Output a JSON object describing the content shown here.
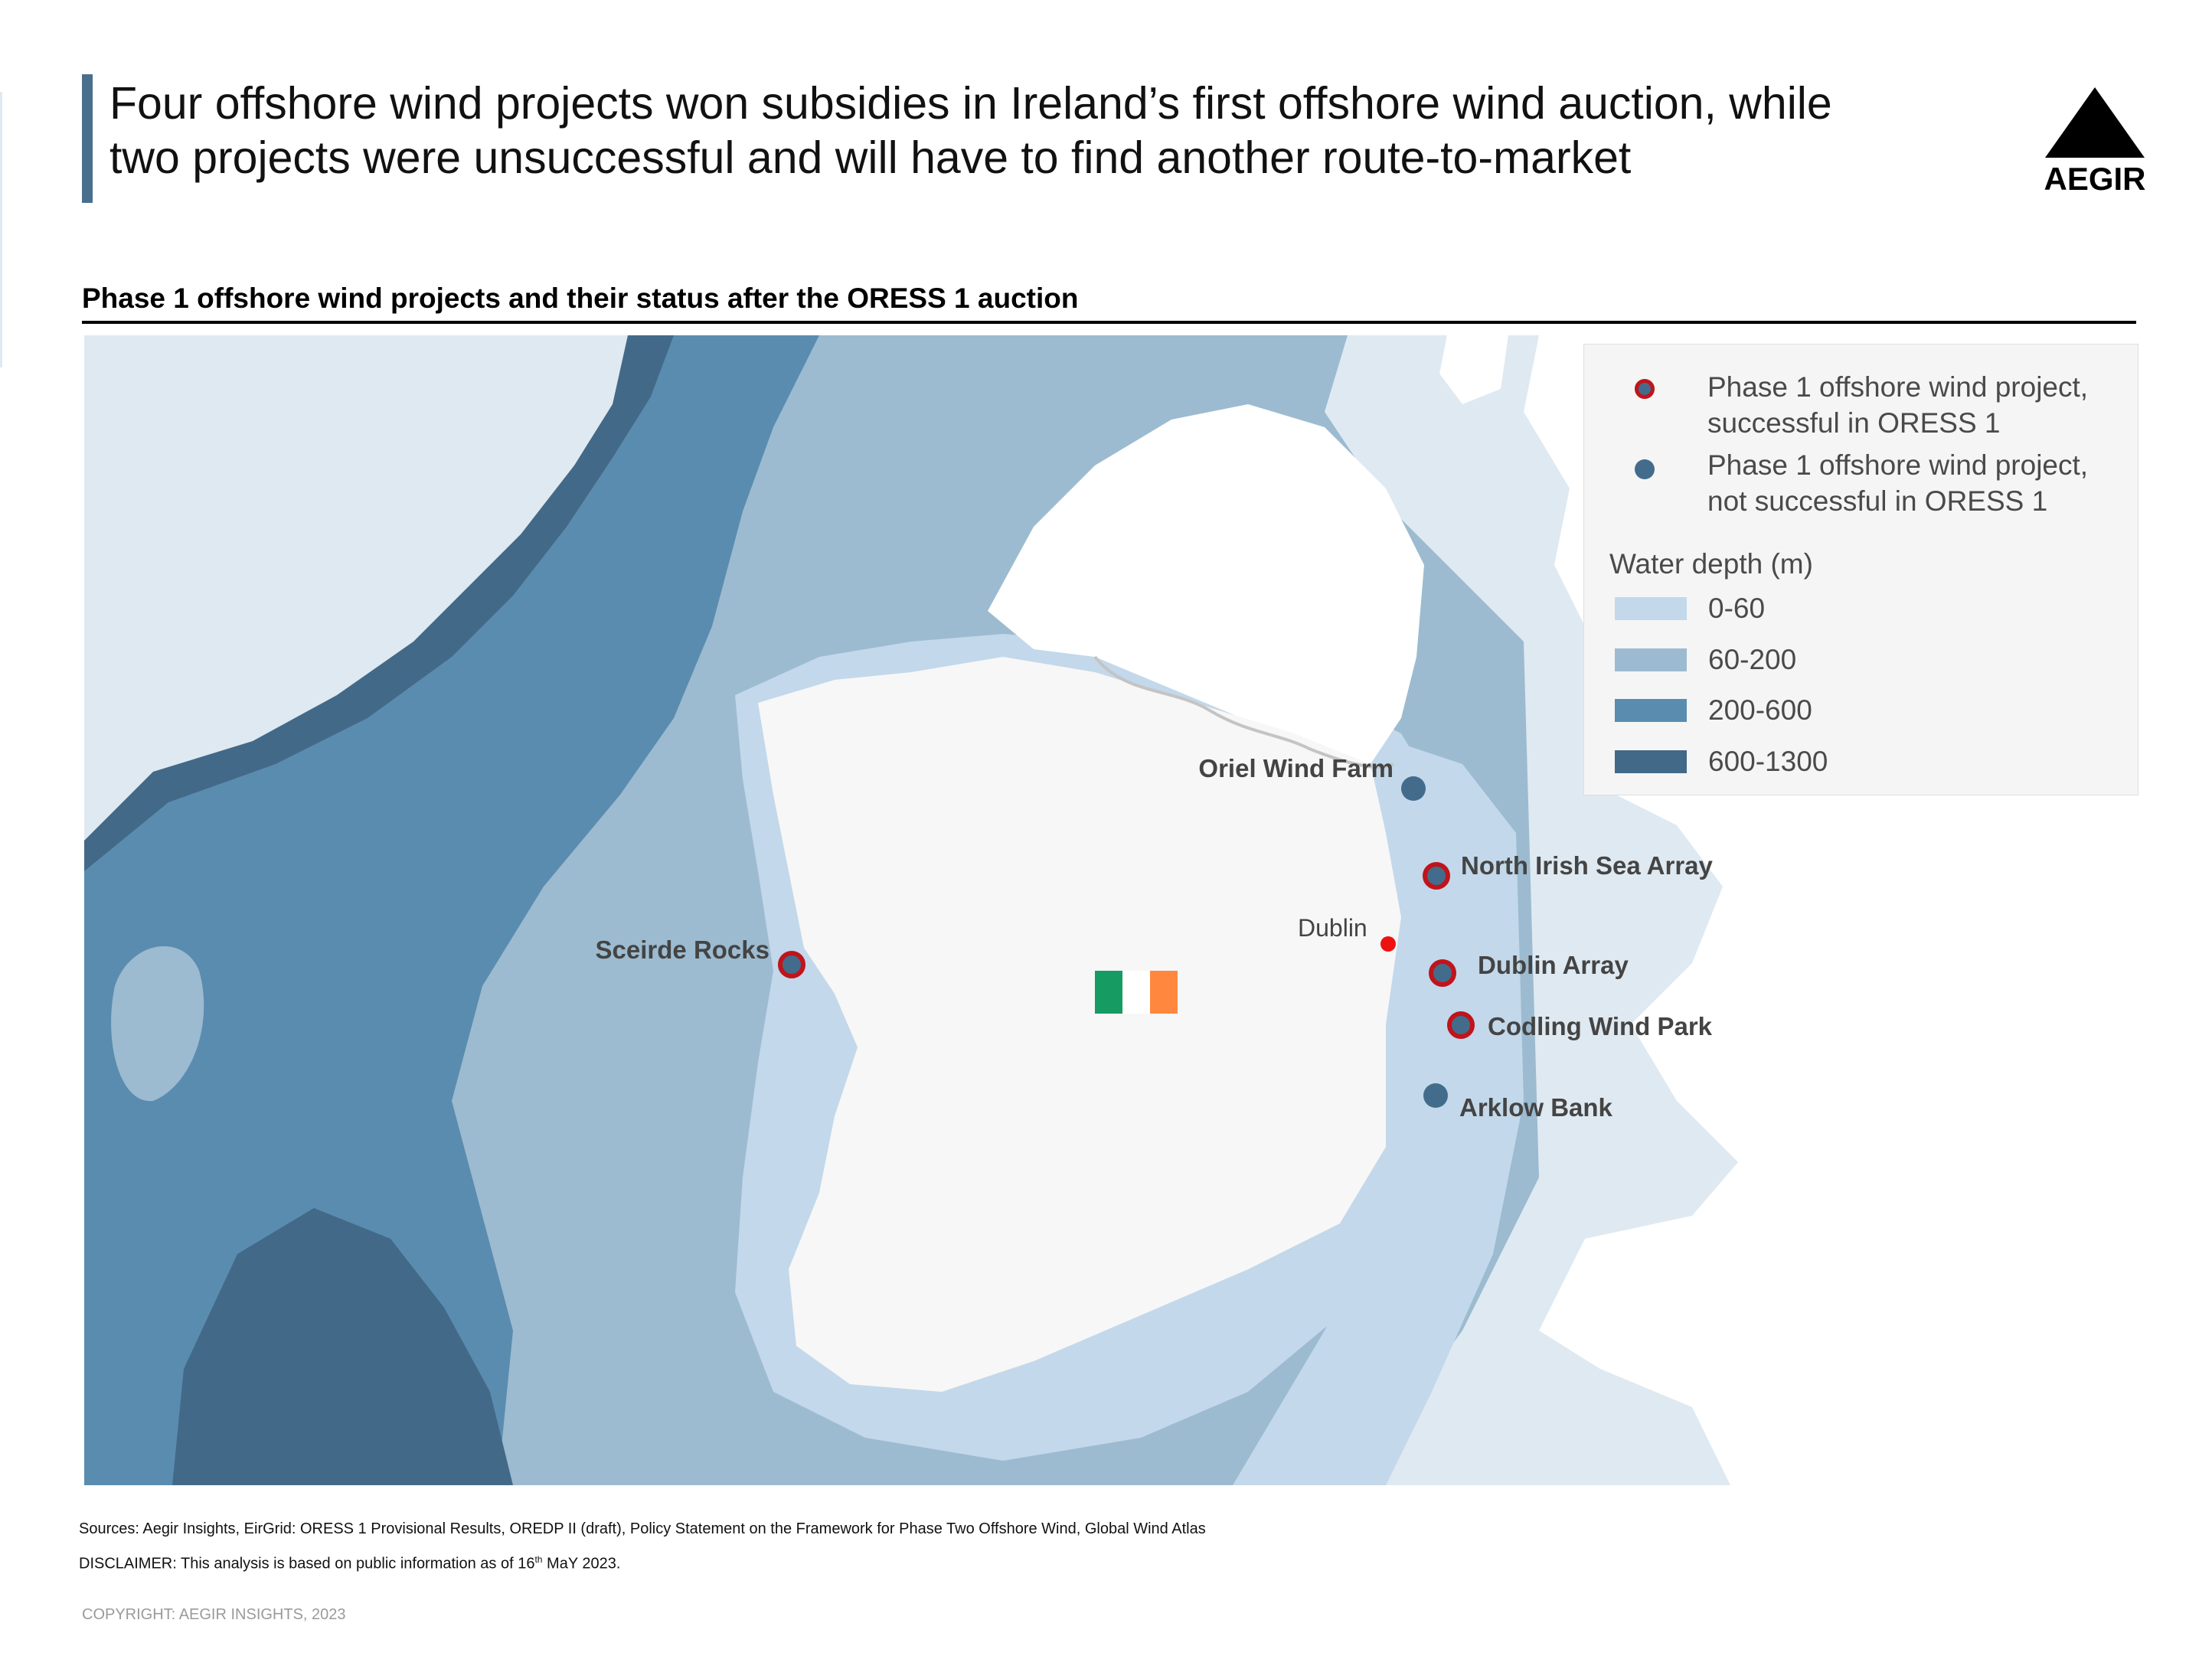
{
  "header": {
    "title_line1": "Four offshore wind projects won subsidies in Ireland’s first offshore wind auction, while",
    "title_line2": "two projects were unsuccessful and will have to find another route-to-market",
    "logo_text": "AEGIR",
    "accent_color": "#4a6f8c"
  },
  "subtitle": "Phase 1 offshore wind projects and their status after the ORESS 1 auction",
  "map": {
    "colors": {
      "sea_shallow": "#c3d8ea",
      "sea_60_200": "#9cbbd0",
      "sea_200_600": "#5a8caf",
      "sea_600_1300": "#436988",
      "open_sea": "#dfe9f1",
      "land": "#f7f7f7",
      "other_land": "#ffffff",
      "border": "#c4c4c4",
      "successful_ring": "#c0141c",
      "project_fill": "#436c8c",
      "city_dot": "#ee1111",
      "flag_green": "#169b62",
      "flag_white": "#ffffff",
      "flag_orange": "#ff883e"
    },
    "projects": [
      {
        "name": "Oriel Wind Farm",
        "status": "not successful in ORESS 1"
      },
      {
        "name": "North Irish Sea Array",
        "status": "successful in ORESS 1"
      },
      {
        "name": "Dublin Array",
        "status": "successful in ORESS 1"
      },
      {
        "name": "Codling Wind Park",
        "status": "successful in ORESS 1"
      },
      {
        "name": "Arklow Bank",
        "status": "not successful in ORESS 1"
      },
      {
        "name": "Sceirde Rocks",
        "status": "successful in ORESS 1"
      }
    ],
    "cities": [
      {
        "name": "Dublin"
      }
    ],
    "flag": "Ireland"
  },
  "legend": {
    "successful_line1": "Phase 1 offshore wind project,",
    "successful_line2": "successful in ORESS 1",
    "unsuccessful_line1": "Phase 1 offshore wind project,",
    "unsuccessful_line2": "not successful in ORESS 1",
    "depth_title": "Water depth (m)",
    "depth_classes": [
      "0-60",
      "60-200",
      "200-600",
      "600-1300"
    ]
  },
  "footer": {
    "sources": "Sources: Aegir Insights, EirGrid: ORESS 1 Provisional Results, OREDP II (draft), Policy Statement on the Framework for Phase Two Offshore Wind, Global Wind Atlas",
    "disclaimer_prefix": "DISCLAIMER: This analysis is based on public information as of 16",
    "disclaimer_sup": "th",
    "disclaimer_suffix": " MaY 2023.",
    "copyright": "COPYRIGHT: AEGIR INSIGHTS, 2023"
  }
}
